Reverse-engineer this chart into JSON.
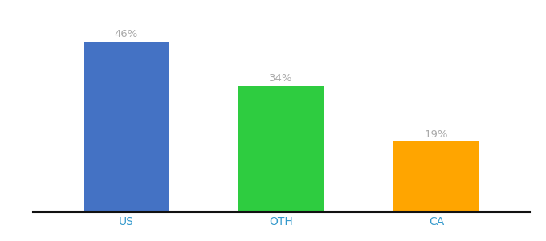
{
  "categories": [
    "US",
    "OTH",
    "CA"
  ],
  "values": [
    46,
    34,
    19
  ],
  "bar_colors": [
    "#4472C4",
    "#2ECC40",
    "#FFA500"
  ],
  "label_color": "#aaaaaa",
  "label_fontsize": 9.5,
  "tick_fontsize": 10,
  "tick_color": "#3399cc",
  "background_color": "#ffffff",
  "ylim": [
    0,
    52
  ],
  "bar_width": 0.55,
  "spine_color": "#111111"
}
